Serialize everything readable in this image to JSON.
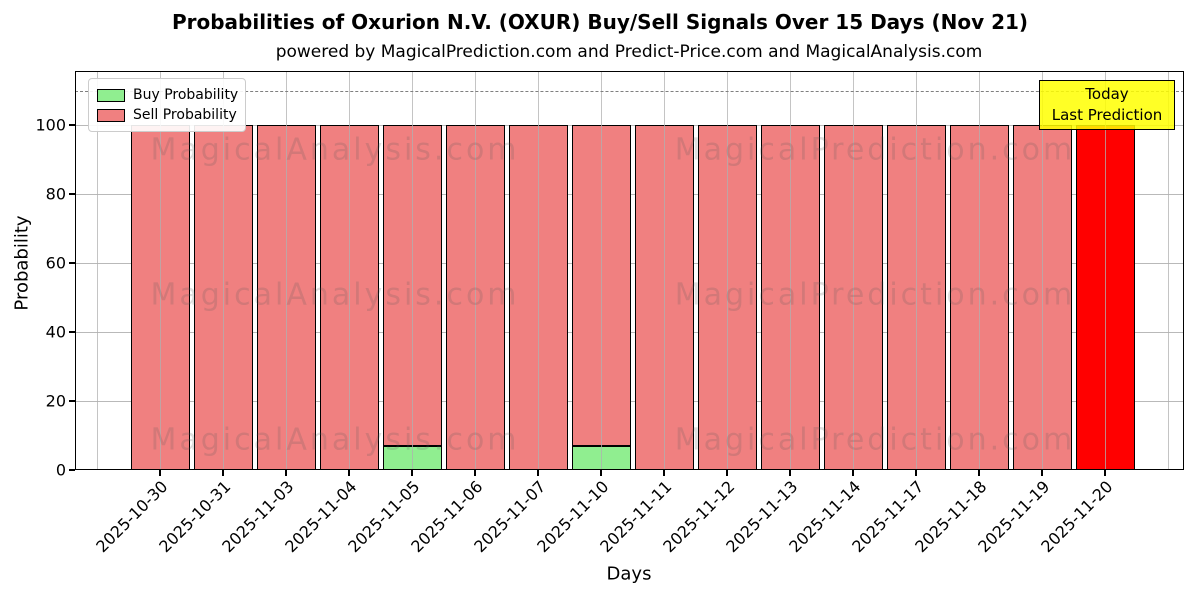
{
  "chart_data": {
    "type": "bar",
    "stacked": true,
    "title": "Probabilities of Oxurion N.V. (OXUR) Buy/Sell Signals Over 15 Days (Nov 21)",
    "subtitle": "powered by MagicalPrediction.com and Predict-Price.com and MagicalAnalysis.com",
    "xlabel": "Days",
    "ylabel": "Probability",
    "ylim": [
      0,
      115
    ],
    "yticks": [
      0,
      20,
      40,
      60,
      80,
      100
    ],
    "grid": true,
    "legend_position": "upper-left",
    "categories": [
      "2025-10-30",
      "2025-10-31",
      "2025-11-03",
      "2025-11-04",
      "2025-11-05",
      "2025-11-06",
      "2025-11-07",
      "2025-11-10",
      "2025-11-11",
      "2025-11-12",
      "2025-11-13",
      "2025-11-14",
      "2025-11-17",
      "2025-11-18",
      "2025-11-19",
      "2025-11-20"
    ],
    "series": [
      {
        "name": "Buy Probability",
        "color": "#90ee90",
        "values": [
          0,
          0,
          0,
          0,
          7,
          0,
          0,
          7,
          0,
          0,
          0,
          0,
          0,
          0,
          0,
          0
        ]
      },
      {
        "name": "Sell Probability",
        "color": "#f08080",
        "values": [
          100,
          100,
          100,
          100,
          93,
          100,
          100,
          93,
          100,
          100,
          100,
          100,
          100,
          100,
          100,
          100
        ]
      }
    ],
    "highlight": {
      "index": 15,
      "color": "#ff0000"
    },
    "threshold_line": {
      "y": 110,
      "style": "dashed",
      "color": "#7f7f7f"
    },
    "annotation": {
      "line1": "Today",
      "line2": "Last Prediction",
      "bg_color": "#ffff00"
    },
    "watermarks": {
      "left": "MagicalAnalysis.com",
      "right": "MagicalPrediction.com"
    }
  }
}
